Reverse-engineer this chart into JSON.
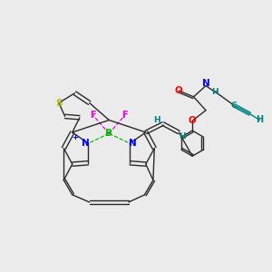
{
  "background_color": "#ebebeb",
  "figsize": [
    3.0,
    3.0
  ],
  "dpi": 100,
  "bond_color": "#2a2a2a",
  "bond_width": 1.0,
  "xlim": [
    -0.5,
    10.5
  ],
  "ylim": [
    -0.5,
    10.5
  ],
  "colors": {
    "S": "#b8b800",
    "B": "#00bb00",
    "N": "#0000ff",
    "F": "#e000e0",
    "O": "#ff0000",
    "N_teal": "#008080",
    "C_teal": "#008080",
    "plus": "#0000ff"
  }
}
